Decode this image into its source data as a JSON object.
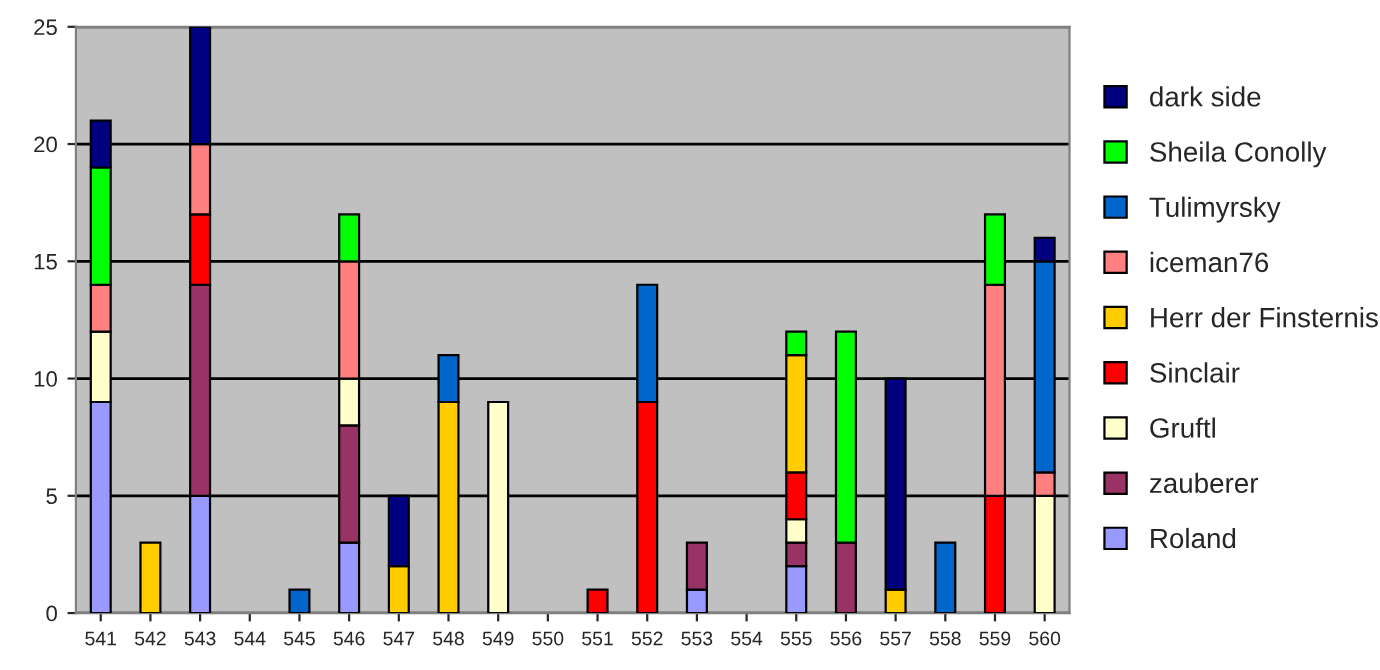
{
  "chart_data": {
    "type": "bar",
    "stacked": true,
    "categories": [
      "541",
      "542",
      "543",
      "544",
      "545",
      "546",
      "547",
      "548",
      "549",
      "550",
      "551",
      "552",
      "553",
      "554",
      "555",
      "556",
      "557",
      "558",
      "559",
      "560"
    ],
    "series": [
      {
        "name": "Roland",
        "color": "#9999ff",
        "values": [
          9,
          null,
          5,
          null,
          null,
          3,
          null,
          null,
          null,
          null,
          null,
          null,
          1,
          null,
          2,
          null,
          null,
          null,
          null,
          null
        ]
      },
      {
        "name": "zauberer",
        "color": "#993366",
        "values": [
          null,
          null,
          9,
          null,
          null,
          5,
          null,
          null,
          null,
          null,
          null,
          null,
          2,
          null,
          1,
          3,
          null,
          null,
          null,
          null
        ]
      },
      {
        "name": "Gruftl",
        "color": "#ffffcc",
        "values": [
          3,
          null,
          null,
          null,
          null,
          2,
          null,
          null,
          9,
          null,
          null,
          null,
          null,
          null,
          1,
          null,
          null,
          null,
          null,
          5
        ]
      },
      {
        "name": "Sinclair",
        "color": "#ff0000",
        "values": [
          null,
          null,
          3,
          null,
          null,
          null,
          null,
          null,
          null,
          null,
          1,
          9,
          null,
          null,
          2,
          null,
          null,
          null,
          5,
          null
        ]
      },
      {
        "name": "Herr der Finsternis",
        "color": "#ffcc00",
        "values": [
          null,
          3,
          null,
          null,
          null,
          null,
          2,
          9,
          null,
          null,
          null,
          null,
          null,
          null,
          5,
          null,
          1,
          null,
          null,
          null
        ]
      },
      {
        "name": "iceman76",
        "color": "#ff8080",
        "values": [
          2,
          null,
          3,
          null,
          null,
          5,
          null,
          null,
          null,
          null,
          null,
          null,
          null,
          null,
          null,
          null,
          null,
          null,
          9,
          1
        ]
      },
      {
        "name": "Tulimyrsky",
        "color": "#0066cc",
        "values": [
          null,
          null,
          null,
          null,
          1,
          null,
          null,
          2,
          null,
          null,
          null,
          5,
          null,
          null,
          null,
          null,
          null,
          3,
          null,
          9
        ]
      },
      {
        "name": "Sheila Conolly",
        "color": "#00ff00",
        "values": [
          5,
          null,
          null,
          null,
          null,
          2,
          null,
          null,
          null,
          null,
          null,
          null,
          null,
          null,
          1,
          9,
          null,
          null,
          3,
          null
        ]
      },
      {
        "name": "dark side",
        "color": "#000080",
        "values": [
          2,
          null,
          5,
          null,
          null,
          null,
          3,
          null,
          null,
          null,
          null,
          null,
          null,
          null,
          null,
          null,
          9,
          null,
          null,
          1
        ]
      }
    ],
    "ylim": [
      0,
      25
    ],
    "yticks": [
      0,
      5,
      10,
      15,
      20,
      25
    ],
    "grid": "y",
    "legend": "right"
  }
}
